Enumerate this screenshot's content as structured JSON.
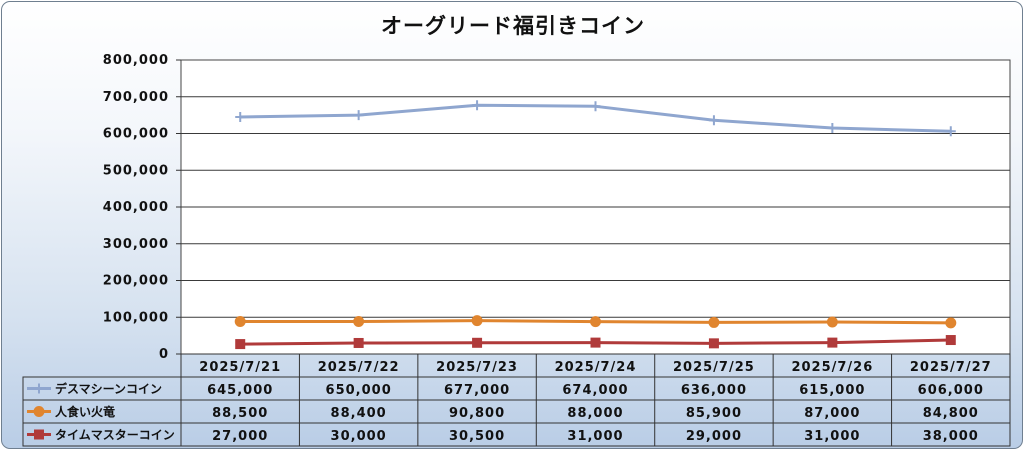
{
  "chart_data": {
    "type": "line",
    "title": "オーグリード福引きコイン",
    "xlabel": "",
    "ylabel": "",
    "ylim": [
      0,
      800000
    ],
    "yticks": [
      "0",
      "100,000",
      "200,000",
      "300,000",
      "400,000",
      "500,000",
      "600,000",
      "700,000",
      "800,000"
    ],
    "grid": true,
    "legend": "data-table-below",
    "categories": [
      "2025/7/21",
      "2025/7/22",
      "2025/7/23",
      "2025/7/24",
      "2025/7/25",
      "2025/7/26",
      "2025/7/27"
    ],
    "series": [
      {
        "name": "デスマシーンコイン",
        "color": "#8fa6cf",
        "marker": "plus",
        "values": [
          645000,
          650000,
          677000,
          674000,
          636000,
          615000,
          606000
        ],
        "labels": [
          "645,000",
          "650,000",
          "677,000",
          "674,000",
          "636,000",
          "615,000",
          "606,000"
        ]
      },
      {
        "name": "人食い火竜",
        "color": "#e0852f",
        "marker": "circle",
        "values": [
          88500,
          88400,
          90800,
          88000,
          85900,
          87000,
          84800
        ],
        "labels": [
          "88,500",
          "88,400",
          "90,800",
          "88,000",
          "85,900",
          "87,000",
          "84,800"
        ]
      },
      {
        "name": "タイムマスターコイン",
        "color": "#b03a3a",
        "marker": "square",
        "values": [
          27000,
          30000,
          30500,
          31000,
          29000,
          31000,
          38000
        ],
        "labels": [
          "27,000",
          "30,000",
          "30,500",
          "31,000",
          "29,000",
          "31,000",
          "38,000"
        ]
      }
    ]
  }
}
